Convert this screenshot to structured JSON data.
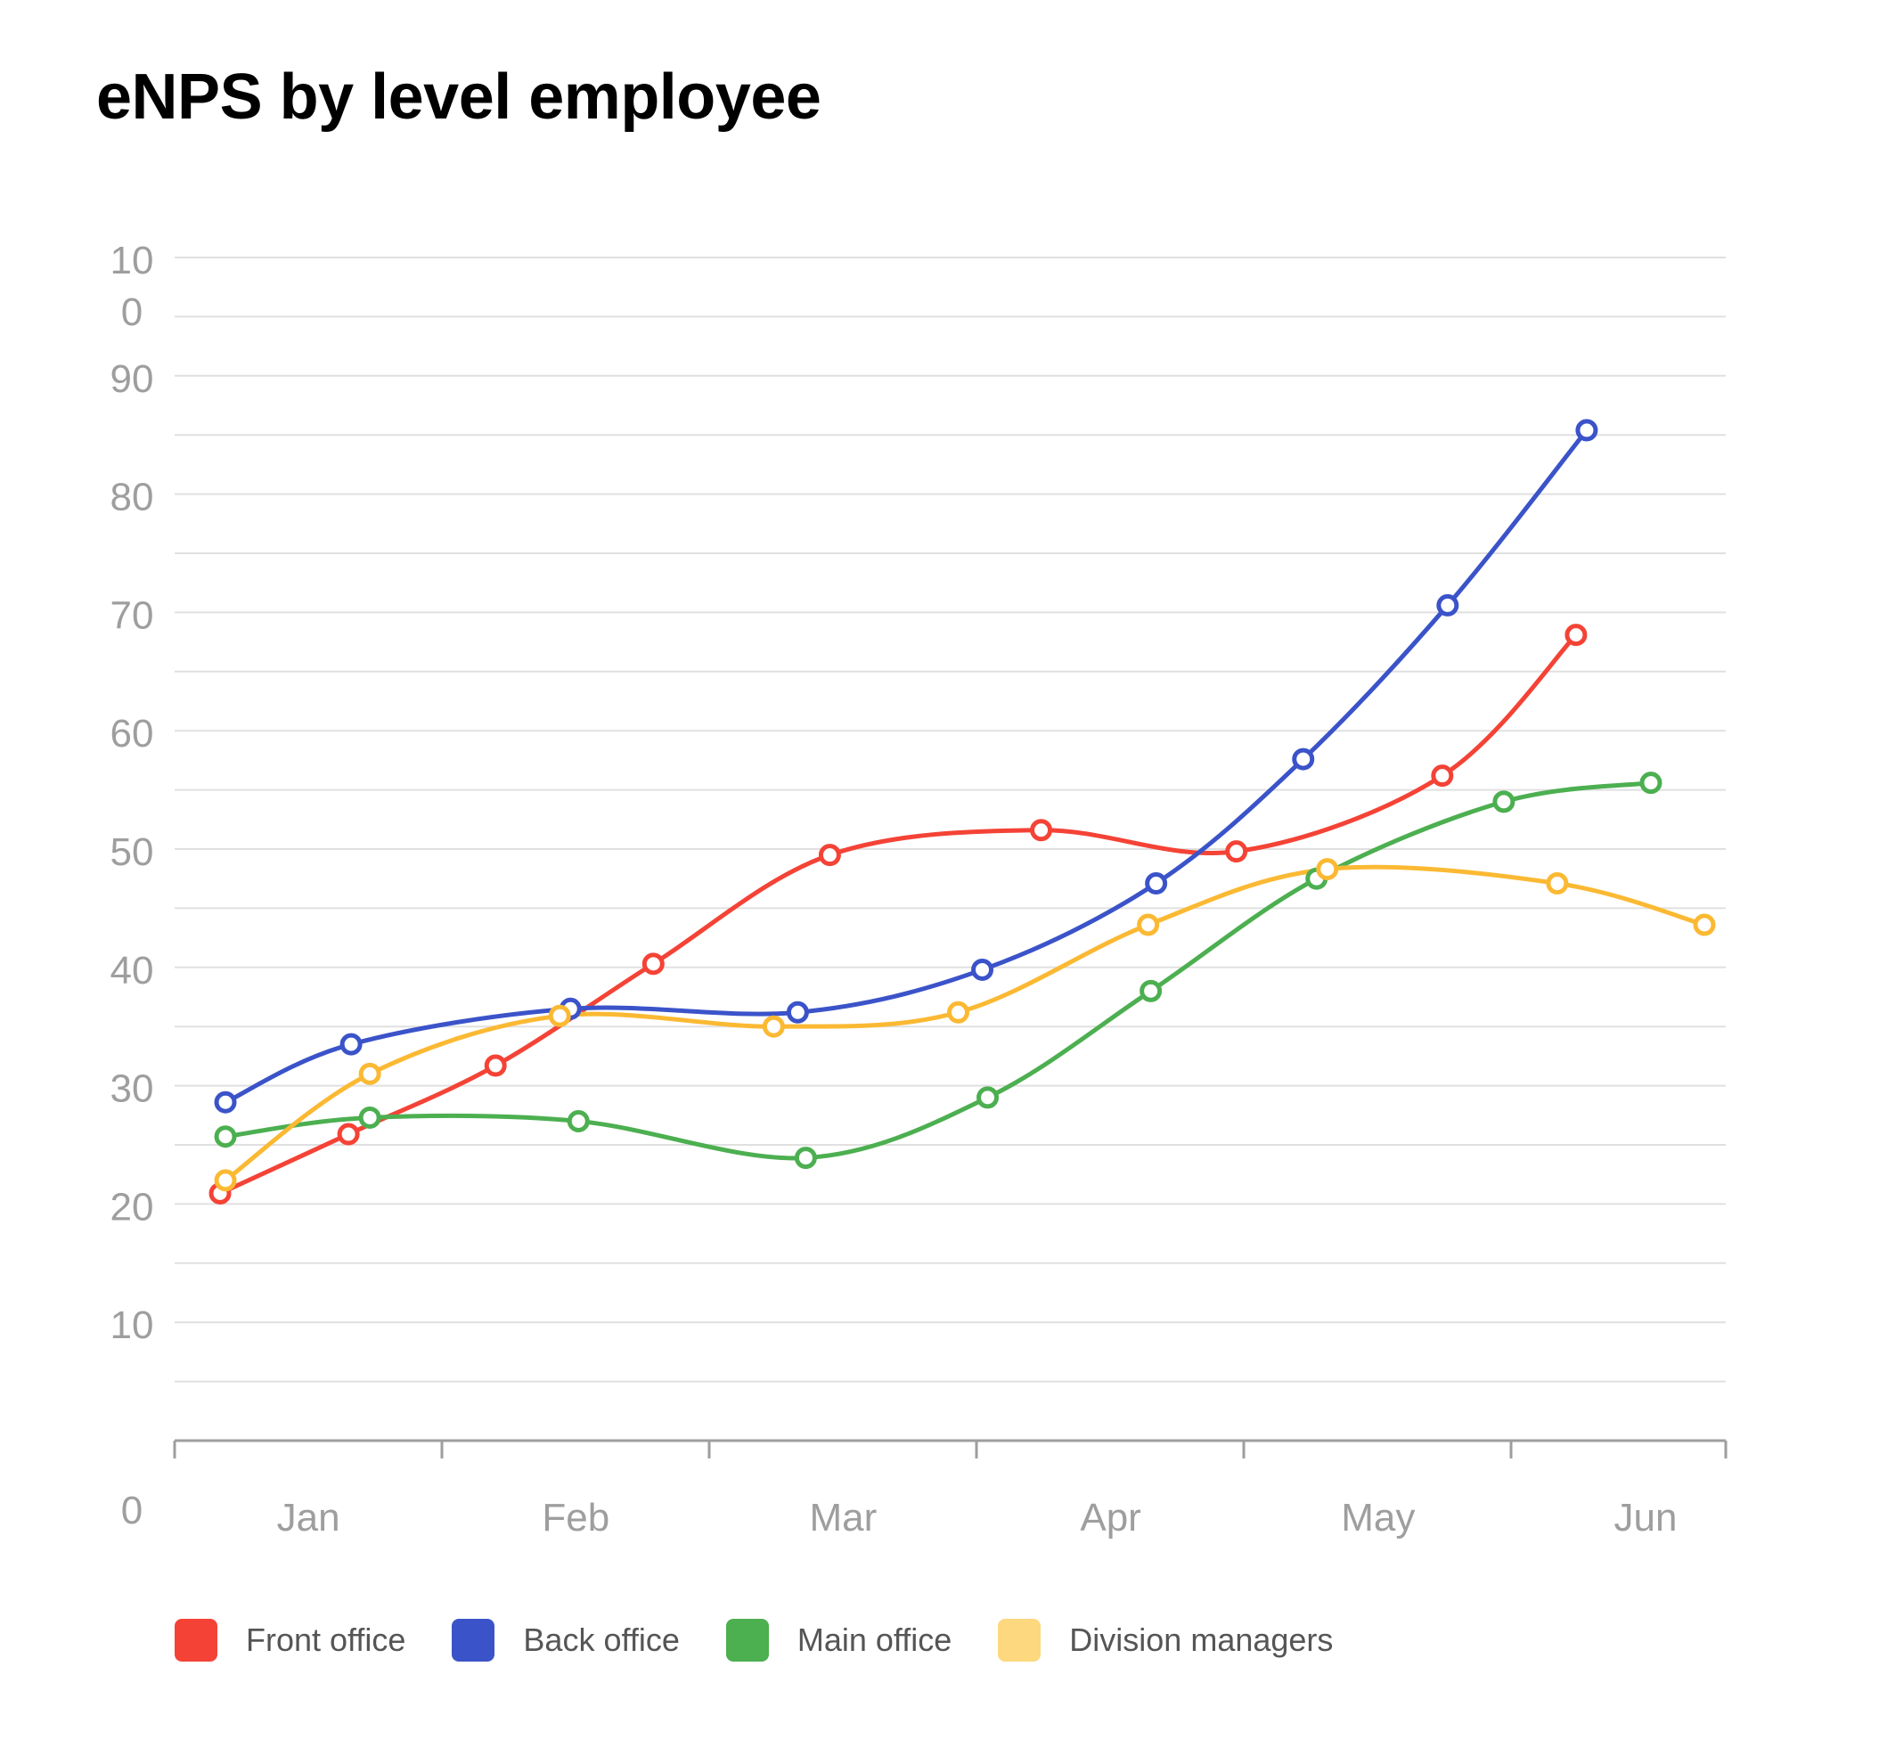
{
  "chart_data": {
    "type": "line",
    "title": "eNPS by level employee",
    "xlabel": "",
    "ylabel": "",
    "categories": [
      "Jan",
      "Feb",
      "Mar",
      "Apr",
      "May",
      "Jun"
    ],
    "y_tick_labels": [
      "10\n0",
      "90",
      "80",
      "70",
      "60",
      "50",
      "40",
      "30",
      "20",
      "10",
      "0"
    ],
    "y_ticks": [
      100,
      90,
      80,
      70,
      60,
      50,
      40,
      30,
      20,
      10,
      0
    ],
    "xlim": [
      0,
      5.8
    ],
    "ylim": [
      0,
      100
    ],
    "grid": true,
    "legend_position": "bottom-left",
    "series": [
      {
        "name": "Front office",
        "color": "#f44336",
        "points": [
          [
            0.17,
            20.9
          ],
          [
            0.65,
            25.9
          ],
          [
            1.2,
            31.7
          ],
          [
            1.79,
            40.3
          ],
          [
            2.45,
            49.5
          ],
          [
            3.24,
            51.6
          ],
          [
            3.97,
            49.8
          ],
          [
            4.74,
            56.2
          ],
          [
            5.24,
            68.1
          ]
        ]
      },
      {
        "name": "Back office",
        "color": "#3b53c9",
        "points": [
          [
            0.19,
            28.6
          ],
          [
            0.66,
            33.5
          ],
          [
            1.48,
            36.5
          ],
          [
            2.33,
            36.2
          ],
          [
            3.02,
            39.8
          ],
          [
            3.67,
            47.1
          ],
          [
            4.22,
            57.6
          ],
          [
            4.76,
            70.6
          ],
          [
            5.28,
            85.4
          ]
        ]
      },
      {
        "name": "Main office",
        "color": "#4caf50",
        "points": [
          [
            0.19,
            25.7
          ],
          [
            0.73,
            27.3
          ],
          [
            1.51,
            27.0
          ],
          [
            2.36,
            23.9
          ],
          [
            3.04,
            29.0
          ],
          [
            3.65,
            38.0
          ],
          [
            4.27,
            47.5
          ],
          [
            4.97,
            54.0
          ],
          [
            5.52,
            55.6
          ]
        ]
      },
      {
        "name": "Division managers",
        "color": "#fbb933",
        "points": [
          [
            0.19,
            22.0
          ],
          [
            0.73,
            31.0
          ],
          [
            1.44,
            35.9
          ],
          [
            2.24,
            35.0
          ],
          [
            2.93,
            36.2
          ],
          [
            3.64,
            43.6
          ],
          [
            4.31,
            48.3
          ],
          [
            5.17,
            47.1
          ],
          [
            5.72,
            43.6
          ]
        ]
      }
    ]
  },
  "legend": {
    "items": [
      {
        "label": "Front office",
        "color": "#f44336"
      },
      {
        "label": "Back office",
        "color": "#3b53c9"
      },
      {
        "label": "Main office",
        "color": "#4caf50"
      },
      {
        "label": "Division managers",
        "color": "#fdd87e"
      }
    ]
  }
}
